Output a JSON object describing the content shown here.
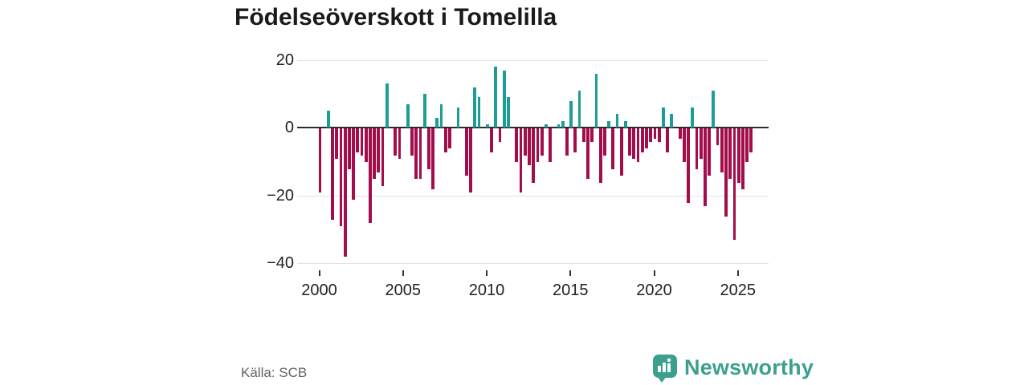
{
  "title": "Födelseöverskott i Tomelilla",
  "source": "Källa: SCB",
  "logo": {
    "brand": "Newsworthy",
    "icon": "newsworthy-speech-bubble-barchart-icon"
  },
  "colors": {
    "positive": "#1d9d97",
    "negative": "#a30d4c",
    "axis": "#2b2b2b",
    "grid": "#e2e2e2",
    "tick_text": "#222222",
    "muted_text": "#636363",
    "brand": "#3ca08f",
    "title_text": "#1a1a1a"
  },
  "chart_data": {
    "type": "bar",
    "title": "Födelseöverskott i Tomelilla",
    "xlabel": "",
    "ylabel": "",
    "frequency": "quarterly",
    "x_start_year": 2000,
    "x_ticks": [
      2000,
      2005,
      2010,
      2015,
      2020,
      2025
    ],
    "x_tick_labels": [
      "2000",
      "2005",
      "2010",
      "2015",
      "2020",
      "2025"
    ],
    "y_ticks": [
      20,
      0,
      -20,
      -40
    ],
    "y_tick_labels": [
      "20",
      "0",
      "−20",
      "−40"
    ],
    "ylim": [
      -42,
      22
    ],
    "grid": true,
    "legend": false,
    "series_note": "quarterly birth surplus (births minus deaths), teal = positive, crimson = negative",
    "values": [
      -19,
      0,
      5,
      -27,
      -9,
      -29,
      -38,
      -12,
      -21,
      -7,
      -8,
      -10,
      -28,
      -15,
      -13,
      -17,
      13,
      0,
      -8,
      -9,
      0,
      7,
      -8,
      -15,
      -15,
      10,
      -12,
      -18,
      3,
      7,
      -7,
      -6,
      0,
      6,
      0,
      -14,
      -19,
      12,
      9,
      0,
      1,
      -7,
      18,
      -4,
      17,
      9,
      0,
      -10,
      -19,
      -8,
      -11,
      -16,
      -10,
      -8,
      1,
      -10,
      0,
      1,
      2,
      -8,
      8,
      -7,
      11,
      -4,
      -15,
      -4,
      16,
      -16,
      -8,
      2,
      -12,
      4,
      -14,
      2,
      -8,
      -9,
      -10,
      -7,
      -6,
      -4,
      -3,
      -4,
      6,
      -7,
      4,
      0,
      -3,
      -10,
      -22,
      6,
      -12,
      -9,
      -23,
      -14,
      11,
      -5,
      -13,
      -26,
      -15,
      -33,
      -16,
      -18,
      -10,
      -7
    ]
  }
}
